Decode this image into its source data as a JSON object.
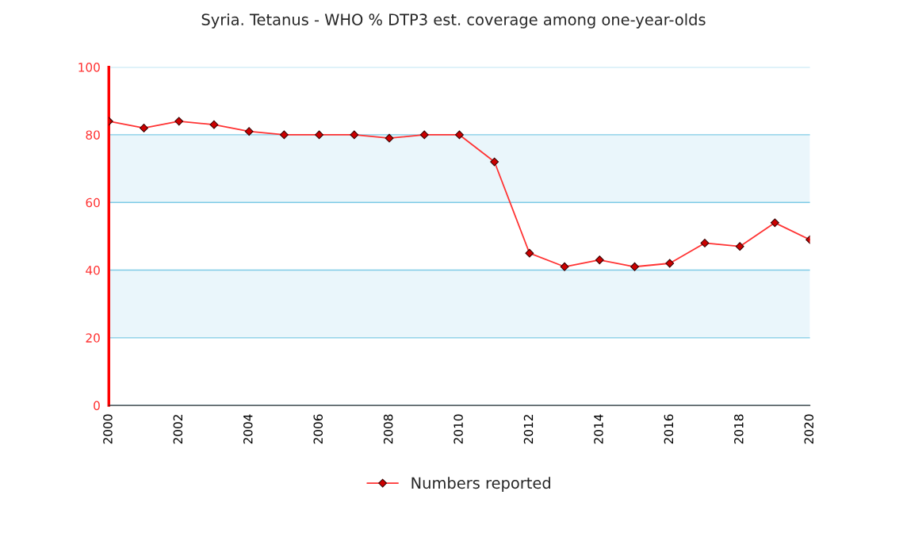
{
  "chart_data": {
    "type": "line",
    "title": "Syria. Tetanus - WHO % DTP3 est. coverage among one-year-olds",
    "x": [
      2000,
      2001,
      2002,
      2003,
      2004,
      2005,
      2006,
      2007,
      2008,
      2009,
      2010,
      2011,
      2012,
      2013,
      2014,
      2015,
      2016,
      2017,
      2018,
      2019,
      2020
    ],
    "series": [
      {
        "name": "Numbers reported",
        "color": "#ff3333",
        "values": [
          84,
          82,
          84,
          83,
          81,
          80,
          80,
          80,
          79,
          80,
          80,
          72,
          45,
          41,
          43,
          41,
          42,
          48,
          47,
          54,
          49
        ]
      }
    ],
    "xlim": [
      2000,
      2020
    ],
    "xticks": [
      2000,
      2002,
      2004,
      2006,
      2008,
      2010,
      2012,
      2014,
      2016,
      2018,
      2020
    ],
    "ylim": [
      0,
      100
    ],
    "yticks": [
      0,
      20,
      40,
      60,
      80,
      100
    ],
    "bands": [
      {
        "axis": "y",
        "from": 20,
        "to": 40,
        "color": "#eaf6fb"
      },
      {
        "axis": "y",
        "from": 60,
        "to": 80,
        "color": "#eaf6fb"
      }
    ],
    "grid": "y",
    "legend": "bottom",
    "marker": "diamond",
    "line_style": "solid"
  }
}
